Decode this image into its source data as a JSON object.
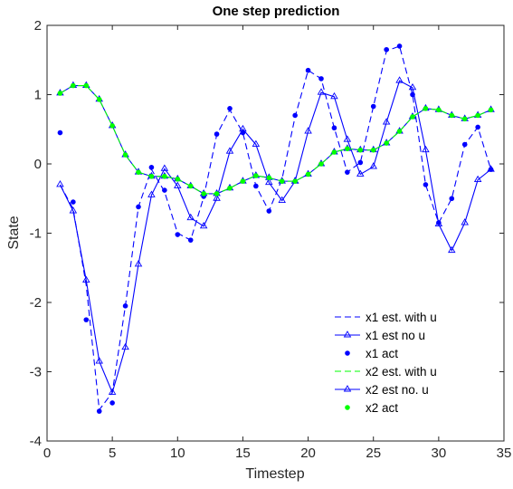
{
  "chart_data": {
    "type": "line",
    "title": "One step prediction",
    "xlabel": "Timestep",
    "ylabel": "State",
    "xlim": [
      0,
      35
    ],
    "ylim": [
      -4,
      2
    ],
    "xticks": [
      "0",
      "5",
      "10",
      "15",
      "20",
      "25",
      "30",
      "35"
    ],
    "yticks": [
      "2",
      "1",
      "0",
      "-1",
      "-2",
      "-3",
      "-4"
    ],
    "legend_position": "bottom-right",
    "x": [
      1,
      2,
      3,
      4,
      5,
      6,
      7,
      8,
      9,
      10,
      11,
      12,
      13,
      14,
      15,
      16,
      17,
      18,
      19,
      20,
      21,
      22,
      23,
      24,
      25,
      26,
      27,
      28,
      29,
      30,
      31,
      32,
      33,
      34
    ],
    "series": [
      {
        "name": "x1 est. with u",
        "style": "dashed",
        "color": "#0000ff",
        "values": [
          -0.3,
          -0.65,
          -1.75,
          -3.55,
          -3.3,
          -2.05,
          -0.62,
          -0.08,
          -0.4,
          -1.0,
          -1.1,
          -0.48,
          0.42,
          0.78,
          0.45,
          -0.32,
          -0.68,
          -0.22,
          0.68,
          1.35,
          1.23,
          0.52,
          -0.12,
          0.02,
          0.83,
          1.63,
          1.7,
          1.0,
          -0.3,
          -0.85,
          -0.5,
          0.28,
          0.53,
          -0.08
        ]
      },
      {
        "name": "x1 est no u",
        "style": "solid-triangle",
        "color": "#0000ff",
        "values": [
          -0.3,
          -0.68,
          -1.68,
          -2.85,
          -3.3,
          -2.65,
          -1.45,
          -0.45,
          -0.07,
          -0.32,
          -0.78,
          -0.9,
          -0.5,
          0.18,
          0.5,
          0.28,
          -0.27,
          -0.53,
          -0.25,
          0.47,
          1.03,
          0.97,
          0.35,
          -0.15,
          -0.04,
          0.6,
          1.2,
          1.1,
          0.2,
          -0.87,
          -1.25,
          -0.85,
          -0.23,
          -0.08
        ]
      },
      {
        "name": "x1 act",
        "style": "markers",
        "color": "#0000ff",
        "values": [
          0.45,
          -0.55,
          -2.25,
          -3.57,
          -3.45,
          -2.05,
          -0.62,
          -0.05,
          -0.38,
          -1.02,
          -1.1,
          -0.47,
          0.43,
          0.8,
          0.45,
          -0.32,
          -0.68,
          -0.25,
          0.7,
          1.35,
          1.23,
          0.52,
          -0.12,
          0.02,
          0.83,
          1.65,
          1.7,
          1.0,
          -0.3,
          -0.85,
          -0.5,
          0.28,
          0.53,
          -0.08
        ]
      },
      {
        "name": "x2 est. with u",
        "style": "dashed",
        "color": "#00ff00",
        "values": [
          1.02,
          1.13,
          1.13,
          0.93,
          0.55,
          0.13,
          -0.12,
          -0.18,
          -0.18,
          -0.22,
          -0.32,
          -0.43,
          -0.43,
          -0.35,
          -0.25,
          -0.17,
          -0.2,
          -0.25,
          -0.25,
          -0.15,
          0.0,
          0.17,
          0.22,
          0.2,
          0.2,
          0.3,
          0.47,
          0.68,
          0.8,
          0.78,
          0.7,
          0.65,
          0.7,
          0.78
        ]
      },
      {
        "name": "x2 est no. u",
        "style": "solid-triangle",
        "color": "#0000ff",
        "values": [
          1.02,
          1.13,
          1.13,
          0.93,
          0.55,
          0.13,
          -0.12,
          -0.18,
          -0.18,
          -0.22,
          -0.32,
          -0.43,
          -0.43,
          -0.35,
          -0.25,
          -0.17,
          -0.2,
          -0.25,
          -0.25,
          -0.15,
          0.0,
          0.17,
          0.22,
          0.2,
          0.2,
          0.3,
          0.47,
          0.68,
          0.8,
          0.78,
          0.7,
          0.65,
          0.7,
          0.78
        ]
      },
      {
        "name": "x2 act",
        "style": "markers",
        "color": "#00ff00",
        "values": [
          1.02,
          1.13,
          1.13,
          0.93,
          0.55,
          0.13,
          -0.12,
          -0.18,
          -0.18,
          -0.22,
          -0.32,
          -0.43,
          -0.43,
          -0.35,
          -0.25,
          -0.17,
          -0.2,
          -0.25,
          -0.25,
          -0.15,
          0.0,
          0.17,
          0.22,
          0.2,
          0.2,
          0.3,
          0.47,
          0.68,
          0.8,
          0.78,
          0.7,
          0.65,
          0.7,
          0.78
        ]
      }
    ]
  }
}
